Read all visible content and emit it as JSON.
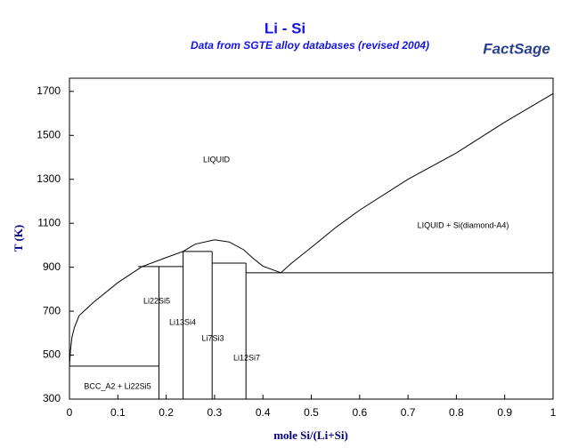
{
  "chart_data": {
    "type": "phase-diagram",
    "title": "Li - Si",
    "subtitle": "Data from SGTE alloy databases (revised 2004)",
    "logo": "FactSage",
    "x_label": "mole Si/(Li+Si)",
    "y_label": "T (K)",
    "xlim": [
      0,
      1
    ],
    "ylim": [
      300,
      1760
    ],
    "xticks": [
      0,
      0.1,
      0.2,
      0.3,
      0.4,
      0.5,
      0.6,
      0.7,
      0.8,
      0.9,
      1
    ],
    "yticks": [
      300,
      500,
      700,
      900,
      1100,
      1300,
      1500,
      1700
    ],
    "color": "#000000",
    "series": [
      {
        "x": [
          0,
          0.002,
          0.005,
          0.01,
          0.02,
          0.05,
          0.1,
          0.15,
          0.2,
          0.235,
          0.26,
          0.3,
          0.33,
          0.36,
          0.38,
          0.4,
          0.437,
          0.46,
          0.5,
          0.55,
          0.6,
          0.7,
          0.8,
          0.9,
          1
        ],
        "values": [
          450,
          520,
          580,
          625,
          680,
          741,
          830,
          903,
          944,
          972,
          1005,
          1025,
          1015,
          980,
          940,
          905,
          875,
          920,
          990,
          1080,
          1160,
          1300,
          1420,
          1560,
          1690
        ]
      },
      {
        "x": [
          0.185,
          0.185
        ],
        "values": [
          300,
          903
        ]
      },
      {
        "x": [
          0.235,
          0.235
        ],
        "values": [
          300,
          972
        ]
      },
      {
        "x": [
          0.295,
          0.295
        ],
        "values": [
          300,
          972
        ]
      },
      {
        "x": [
          0.365,
          0.365
        ],
        "values": [
          300,
          919
        ]
      },
      {
        "x": [
          0,
          0.185
        ],
        "values": [
          450,
          450
        ]
      },
      {
        "x": [
          0.142,
          0.235
        ],
        "values": [
          903,
          903
        ]
      },
      {
        "x": [
          0.235,
          0.295
        ],
        "values": [
          972,
          972
        ]
      },
      {
        "x": [
          0.295,
          0.365
        ],
        "values": [
          919,
          919
        ]
      },
      {
        "x": [
          0.365,
          1
        ],
        "values": [
          875,
          875
        ]
      }
    ],
    "annotations": [
      "LIQUID",
      "LIQUID + Si(diamond-A4)",
      "Li22Si5",
      "Li13Si4",
      "Li7Si3",
      "Li12Si7",
      "BCC_A2 + Li22Si5"
    ]
  }
}
